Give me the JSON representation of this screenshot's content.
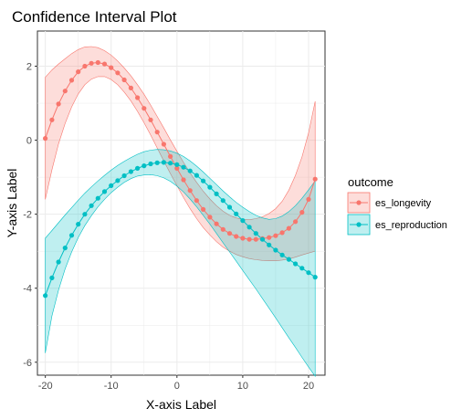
{
  "chart_data": {
    "type": "line",
    "title": "Confidence Interval Plot",
    "xlabel": "X-axis Label",
    "ylabel": "Y-axis Label",
    "xlim": [
      -21.2,
      22.5
    ],
    "ylim": [
      -6.35,
      2.95
    ],
    "xticks": [
      -20,
      -10,
      0,
      10,
      20
    ],
    "xtick_labels": [
      "-20",
      "-10",
      "0",
      "10",
      "20"
    ],
    "yticks": [
      -6,
      -4,
      -2,
      0,
      2
    ],
    "ytick_labels": [
      "-6",
      "-4",
      "-2",
      "0",
      "2"
    ],
    "grid": true,
    "legend": {
      "title": "outcome",
      "position": "right"
    },
    "series": [
      {
        "name": "es_longevity",
        "color": "#F8766D",
        "x": [
          -20,
          -19,
          -18,
          -17,
          -16,
          -15,
          -14,
          -13,
          -12,
          -11,
          -10,
          -9,
          -8,
          -7,
          -6,
          -5,
          -4,
          -3,
          -2,
          -1,
          0,
          1,
          2,
          3,
          4,
          5,
          6,
          7,
          8,
          9,
          10,
          11,
          12,
          13,
          14,
          15,
          16,
          17,
          18,
          19,
          20,
          21
        ],
        "y": [
          0.05,
          0.55,
          0.98,
          1.33,
          1.62,
          1.85,
          2.0,
          2.08,
          2.1,
          2.06,
          1.96,
          1.82,
          1.63,
          1.41,
          1.15,
          0.86,
          0.55,
          0.22,
          -0.11,
          -0.44,
          -0.76,
          -1.07,
          -1.36,
          -1.63,
          -1.87,
          -2.08,
          -2.26,
          -2.41,
          -2.52,
          -2.6,
          -2.65,
          -2.68,
          -2.68,
          -2.66,
          -2.63,
          -2.58,
          -2.5,
          -2.38,
          -2.2,
          -1.95,
          -1.6,
          -1.05
        ],
        "lower": [
          -1.6,
          -0.8,
          -0.1,
          0.45,
          0.9,
          1.25,
          1.5,
          1.65,
          1.72,
          1.72,
          1.64,
          1.5,
          1.3,
          1.06,
          0.78,
          0.47,
          0.14,
          -0.21,
          -0.56,
          -0.9,
          -1.23,
          -1.55,
          -1.85,
          -2.12,
          -2.36,
          -2.56,
          -2.74,
          -2.89,
          -3.0,
          -3.09,
          -3.15,
          -3.2,
          -3.23,
          -3.25,
          -3.26,
          -3.26,
          -3.24,
          -3.21,
          -3.16,
          -3.1,
          -3.05,
          -3.0
        ],
        "upper": [
          1.7,
          1.9,
          2.06,
          2.2,
          2.34,
          2.45,
          2.52,
          2.53,
          2.5,
          2.42,
          2.3,
          2.14,
          1.95,
          1.74,
          1.5,
          1.24,
          0.95,
          0.64,
          0.33,
          0.01,
          -0.3,
          -0.6,
          -0.88,
          -1.14,
          -1.38,
          -1.59,
          -1.77,
          -1.92,
          -2.03,
          -2.1,
          -2.14,
          -2.15,
          -2.12,
          -2.07,
          -1.98,
          -1.85,
          -1.65,
          -1.35,
          -0.95,
          -0.45,
          0.2,
          1.05
        ]
      },
      {
        "name": "es_reproduction",
        "color": "#00BFC4",
        "x": [
          -20,
          -19,
          -18,
          -17,
          -16,
          -15,
          -14,
          -13,
          -12,
          -11,
          -10,
          -9,
          -8,
          -7,
          -6,
          -5,
          -4,
          -3,
          -2,
          -1,
          0,
          1,
          2,
          3,
          4,
          5,
          6,
          7,
          8,
          9,
          10,
          11,
          12,
          13,
          14,
          15,
          16,
          17,
          18,
          19,
          20,
          21
        ],
        "y": [
          -4.2,
          -3.72,
          -3.29,
          -2.91,
          -2.57,
          -2.27,
          -2.0,
          -1.77,
          -1.57,
          -1.39,
          -1.23,
          -1.09,
          -0.96,
          -0.85,
          -0.76,
          -0.69,
          -0.64,
          -0.61,
          -0.6,
          -0.62,
          -0.66,
          -0.73,
          -0.83,
          -0.95,
          -1.1,
          -1.27,
          -1.45,
          -1.63,
          -1.81,
          -1.99,
          -2.17,
          -2.35,
          -2.52,
          -2.68,
          -2.83,
          -2.97,
          -3.1,
          -3.22,
          -3.34,
          -3.46,
          -3.58,
          -3.7
        ],
        "lower": [
          -5.75,
          -4.75,
          -4.05,
          -3.48,
          -3.02,
          -2.63,
          -2.31,
          -2.04,
          -1.8,
          -1.6,
          -1.42,
          -1.27,
          -1.14,
          -1.04,
          -0.97,
          -0.94,
          -0.93,
          -0.96,
          -1.02,
          -1.11,
          -1.24,
          -1.4,
          -1.59,
          -1.8,
          -2.03,
          -2.27,
          -2.52,
          -2.77,
          -3.02,
          -3.27,
          -3.52,
          -3.77,
          -4.02,
          -4.28,
          -4.54,
          -4.8,
          -5.07,
          -5.34,
          -5.6,
          -5.87,
          -6.13,
          -6.38
        ],
        "upper": [
          -2.65,
          -2.44,
          -2.23,
          -2.02,
          -1.82,
          -1.62,
          -1.43,
          -1.26,
          -1.1,
          -0.95,
          -0.81,
          -0.68,
          -0.57,
          -0.47,
          -0.38,
          -0.31,
          -0.27,
          -0.25,
          -0.26,
          -0.29,
          -0.35,
          -0.44,
          -0.56,
          -0.7,
          -0.86,
          -1.03,
          -1.2,
          -1.37,
          -1.53,
          -1.68,
          -1.81,
          -1.93,
          -2.03,
          -2.1,
          -2.14,
          -2.12,
          -2.05,
          -1.93,
          -1.77,
          -1.57,
          -1.34,
          -1.1
        ]
      }
    ]
  }
}
